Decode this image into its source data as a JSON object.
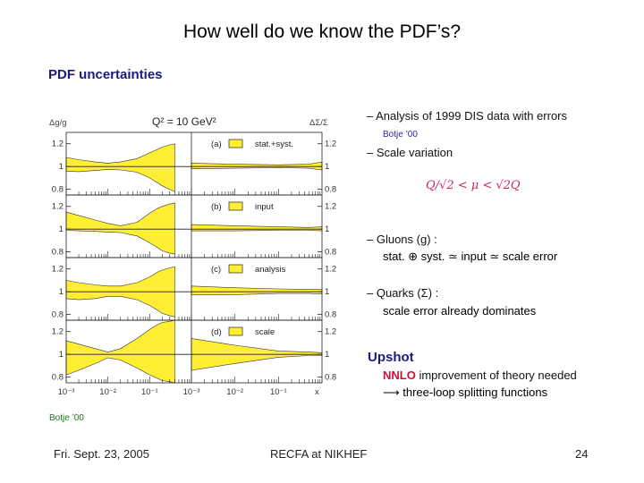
{
  "slide": {
    "title": "How well do we know the PDF’s?",
    "section_title": "PDF uncertainties"
  },
  "bullets": {
    "b1": "– Analysis of 1999 DIS data with errors",
    "b1_source": "Botje ’00",
    "b2": "– Scale variation",
    "formula": "Q/√2 < μ < √2Q",
    "b3": "– Gluons (g) :",
    "b3_sub": "stat. ⊕ syst. ≃ input ≃ scale error",
    "b4": "– Quarks (Σ) :",
    "b4_sub": "scale error already dominates"
  },
  "upshot": {
    "heading": "Upshot",
    "nnlo": "NNLO",
    "line1_rest": " improvement of theory needed",
    "line2": "⟶ three-loop splitting functions"
  },
  "figure_source": "Botje ’00",
  "footer": {
    "left": "Fri. Sept. 23, 2005",
    "center": "RECFA at NIKHEF",
    "right": "24"
  },
  "colors": {
    "band": "#ffee33",
    "title_blue": "#1a1a80",
    "source_blue": "#2a2aa0",
    "source_green": "#1a7a1a",
    "formula_pink": "#c8246e",
    "nnlo_red": "#cc1133"
  },
  "chart_data": {
    "type": "area",
    "title": "Q² = 10 GeV²",
    "left_ylabel": "Δg/g",
    "right_ylabel": "ΔΣ/Σ",
    "xlabel": "x",
    "xscale": "log",
    "xlim": [
      0.001,
      1
    ],
    "ylim": [
      0.75,
      1.3
    ],
    "yticks": [
      "1.2",
      "1",
      "0.8"
    ],
    "xtick_labels_gluon": [
      "10⁻³",
      "10⁻²",
      "10⁻¹"
    ],
    "xtick_labels_quark": [
      "10⁻³",
      "10⁻²",
      "10⁻¹",
      "x"
    ],
    "panels": [
      {
        "label": "(a)",
        "legend": "stat.+syst.",
        "gluon": {
          "x": [
            0.001,
            0.002,
            0.005,
            0.01,
            0.02,
            0.05,
            0.1,
            0.15,
            0.2,
            0.3,
            0.4
          ],
          "upper": [
            1.08,
            1.06,
            1.04,
            1.03,
            1.04,
            1.07,
            1.12,
            1.15,
            1.17,
            1.19,
            1.2
          ],
          "lower": [
            0.96,
            0.955,
            0.965,
            0.975,
            0.97,
            0.95,
            0.9,
            0.86,
            0.83,
            0.8,
            0.78
          ]
        },
        "quark": {
          "x": [
            0.001,
            0.01,
            0.1,
            0.5,
            1
          ],
          "upper": [
            1.03,
            1.02,
            1.015,
            1.02,
            1.04
          ],
          "lower": [
            0.98,
            0.985,
            0.99,
            0.985,
            0.97
          ]
        }
      },
      {
        "label": "(b)",
        "legend": "input",
        "gluon": {
          "x": [
            0.001,
            0.002,
            0.005,
            0.01,
            0.02,
            0.05,
            0.1,
            0.15,
            0.2,
            0.3,
            0.4
          ],
          "upper": [
            1.15,
            1.12,
            1.08,
            1.05,
            1.03,
            1.06,
            1.14,
            1.18,
            1.2,
            1.22,
            1.23
          ],
          "lower": [
            0.99,
            0.985,
            0.98,
            0.975,
            0.97,
            0.94,
            0.88,
            0.84,
            0.81,
            0.79,
            0.78
          ]
        },
        "quark": {
          "x": [
            0.001,
            0.01,
            0.1,
            0.5,
            1
          ],
          "upper": [
            1.04,
            1.03,
            1.02,
            1.015,
            1.02
          ],
          "lower": [
            0.985,
            0.985,
            0.99,
            0.99,
            0.985
          ]
        }
      },
      {
        "label": "(c)",
        "legend": "analysis",
        "gluon": {
          "x": [
            0.001,
            0.002,
            0.005,
            0.01,
            0.02,
            0.05,
            0.1,
            0.15,
            0.2,
            0.3,
            0.4
          ],
          "upper": [
            1.1,
            1.08,
            1.06,
            1.05,
            1.05,
            1.08,
            1.13,
            1.17,
            1.19,
            1.21,
            1.22
          ],
          "lower": [
            0.94,
            0.93,
            0.94,
            0.96,
            0.96,
            0.93,
            0.88,
            0.84,
            0.81,
            0.79,
            0.78
          ]
        },
        "quark": {
          "x": [
            0.001,
            0.01,
            0.1,
            0.5,
            1
          ],
          "upper": [
            1.05,
            1.035,
            1.025,
            1.02,
            1.02
          ],
          "lower": [
            0.975,
            0.975,
            0.985,
            0.985,
            0.98
          ]
        }
      },
      {
        "label": "(d)",
        "legend": "scale",
        "gluon": {
          "x": [
            0.001,
            0.002,
            0.005,
            0.01,
            0.02,
            0.05,
            0.1,
            0.15,
            0.2,
            0.3,
            0.4
          ],
          "upper": [
            1.12,
            1.09,
            1.05,
            1.02,
            1.05,
            1.14,
            1.22,
            1.26,
            1.28,
            1.29,
            1.3
          ],
          "lower": [
            0.82,
            0.86,
            0.92,
            0.97,
            0.95,
            0.88,
            0.82,
            0.79,
            0.77,
            0.76,
            0.75
          ]
        },
        "quark": {
          "x": [
            0.001,
            0.01,
            0.1,
            0.5,
            1
          ],
          "upper": [
            1.14,
            1.08,
            1.03,
            1.02,
            1.015
          ],
          "lower": [
            0.86,
            0.92,
            0.975,
            0.99,
            0.99
          ]
        }
      }
    ]
  }
}
